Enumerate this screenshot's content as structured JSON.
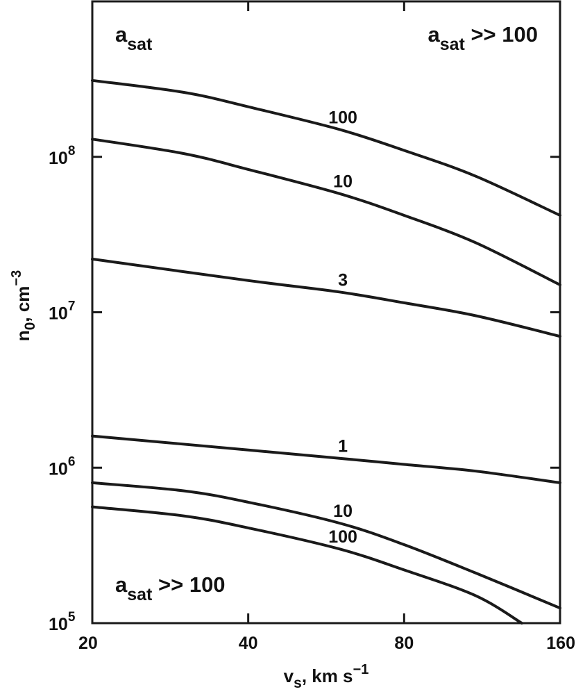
{
  "chart_data": {
    "type": "line",
    "xscale": "log2",
    "yscale": "log",
    "xlim": [
      20,
      160
    ],
    "ylim": [
      100000,
      1000000000
    ],
    "grid": false,
    "xlabel": {
      "main": "v",
      "sub": "s",
      "rest": ", km s",
      "sup": "−1"
    },
    "ylabel": {
      "main": "n",
      "sub": "0",
      "rest": ", cm",
      "sup": "−3"
    },
    "xticks": [
      {
        "value": 20,
        "label": "20"
      },
      {
        "value": 40,
        "label": "40"
      },
      {
        "value": 80,
        "label": "80"
      },
      {
        "value": 160,
        "label": "160"
      }
    ],
    "yticks": [
      {
        "value": 100000,
        "base": "10",
        "exp": "5"
      },
      {
        "value": 1000000,
        "base": "10",
        "exp": "6"
      },
      {
        "value": 10000000,
        "base": "10",
        "exp": "7"
      },
      {
        "value": 100000000,
        "base": "10",
        "exp": "8"
      }
    ],
    "annotations": [
      {
        "main": "a",
        "sub": "sat",
        "rest": "",
        "position": "top-left"
      },
      {
        "main": "a",
        "sub": "sat",
        "rest": " >> 100",
        "position": "top-right"
      },
      {
        "main": "a",
        "sub": "sat",
        "rest": " >> 100",
        "position": "bottom-left"
      }
    ],
    "series": [
      {
        "label": "100",
        "label_at": 60,
        "x": [
          20,
          30,
          40,
          60,
          80,
          110,
          160
        ],
        "y": [
          310000000,
          260000000,
          210000000,
          150000000,
          110000000,
          75000000,
          42000000
        ]
      },
      {
        "label": "10",
        "label_at": 60,
        "x": [
          20,
          30,
          40,
          60,
          80,
          110,
          160
        ],
        "y": [
          130000000,
          105000000,
          83000000,
          58000000,
          42000000,
          28000000,
          15000000
        ]
      },
      {
        "label": "3",
        "label_at": 60,
        "x": [
          20,
          40,
          60,
          80,
          110,
          160
        ],
        "y": [
          22000000,
          16000000,
          13500000,
          11500000,
          9500000,
          7000000
        ]
      },
      {
        "label": "1",
        "label_at": 60,
        "x": [
          20,
          40,
          60,
          80,
          110,
          160
        ],
        "y": [
          1600000,
          1300000,
          1150000,
          1050000,
          950000,
          800000
        ]
      },
      {
        "label": "10",
        "label_at": 60,
        "x": [
          20,
          30,
          40,
          60,
          80,
          110,
          160
        ],
        "y": [
          800000,
          710000,
          600000,
          440000,
          320000,
          210000,
          125000
        ]
      },
      {
        "label": "100",
        "label_at": 60,
        "x": [
          20,
          30,
          40,
          60,
          80,
          110,
          135
        ],
        "y": [
          560000,
          490000,
          410000,
          300000,
          220000,
          150000,
          100000
        ]
      }
    ]
  }
}
